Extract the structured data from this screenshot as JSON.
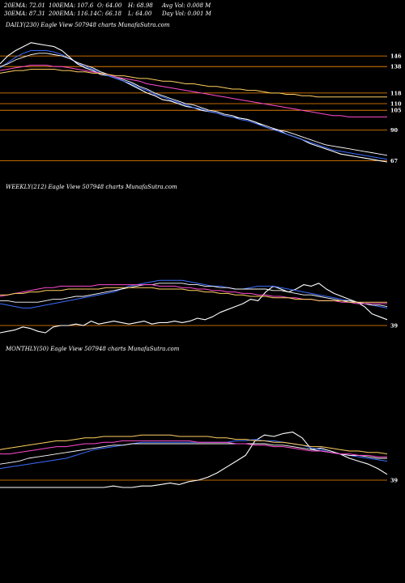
{
  "header": {
    "row1": [
      "20EMA: 72.01",
      "100EMA: 107.6",
      "O: 64.00",
      "H: 68.98",
      "Avg Vol: 0.008 M"
    ],
    "row2": [
      "30EMA: 87.31",
      "200EMA: 116.14",
      "C: 66.18",
      "L: 64.00",
      "Day Vol: 0.001 M"
    ]
  },
  "panels": {
    "daily": {
      "title": "DAILY(230) Eagle   View  507948  charts MunafaSutra.com"
    },
    "weekly": {
      "title": "WEEKLY(212) Eagle   View  507948  charts MunafaSutra.com"
    },
    "monthly": {
      "title": "MONTHLY(50) Eagle   View  507948  charts MunafaSutra.com"
    }
  },
  "colors": {
    "background": "#000000",
    "price": "#ffffff",
    "ema20": "#3b6cff",
    "ema30": "#ffffff",
    "ema100": "#ff4bd0",
    "ema200": "#ffd060",
    "level": "#ff8c00"
  },
  "chart_data": [
    {
      "type": "line",
      "panel": "daily",
      "series": [
        {
          "role": "price",
          "values": [
            140,
            146,
            150,
            153,
            156,
            155,
            154,
            153,
            150,
            145,
            140,
            137,
            135,
            132,
            131,
            129,
            127,
            124,
            121,
            118,
            116,
            113,
            112,
            110,
            108,
            107,
            105,
            104,
            103,
            101,
            100,
            99,
            98,
            96,
            93,
            91,
            90,
            87,
            85,
            83,
            80,
            78,
            76,
            74,
            72,
            71,
            70,
            69,
            68,
            67,
            66
          ]
        },
        {
          "role": "ema20",
          "values": [
            137,
            141,
            145,
            148,
            150,
            150,
            150,
            149,
            147,
            144,
            141,
            138,
            136,
            133,
            131,
            129,
            127,
            125,
            122,
            120,
            117,
            115,
            113,
            111,
            109,
            107,
            106,
            104,
            103,
            101,
            100,
            98,
            97,
            95,
            93,
            91,
            89,
            87,
            85,
            83,
            81,
            79,
            77,
            75,
            74,
            73,
            72,
            71,
            70,
            69,
            68
          ]
        },
        {
          "role": "ema30",
          "values": [
            138,
            140,
            143,
            145,
            147,
            148,
            148,
            147,
            146,
            144,
            141,
            139,
            137,
            134,
            132,
            130,
            128,
            126,
            123,
            121,
            118,
            116,
            114,
            112,
            110,
            109,
            107,
            105,
            104,
            102,
            101,
            99,
            98,
            96,
            94,
            92,
            90,
            89,
            87,
            85,
            83,
            81,
            79,
            78,
            77,
            76,
            75,
            74,
            73,
            72,
            71
          ]
        },
        {
          "role": "ema100",
          "values": [
            135,
            136,
            137,
            138,
            139,
            139,
            139,
            138,
            138,
            137,
            136,
            135,
            134,
            133,
            132,
            130,
            129,
            128,
            127,
            125,
            124,
            123,
            122,
            121,
            120,
            119,
            118,
            117,
            116,
            115,
            114,
            113,
            112,
            111,
            110,
            109,
            108,
            107,
            106,
            105,
            104,
            103,
            102,
            101,
            101,
            100,
            100,
            100,
            100,
            100,
            100
          ]
        },
        {
          "role": "ema200",
          "values": [
            133,
            134,
            135,
            135,
            136,
            136,
            136,
            136,
            135,
            135,
            134,
            134,
            133,
            133,
            132,
            131,
            131,
            130,
            129,
            129,
            128,
            127,
            127,
            126,
            125,
            125,
            124,
            123,
            123,
            122,
            121,
            121,
            120,
            120,
            119,
            118,
            118,
            117,
            117,
            116,
            116,
            115,
            115,
            115,
            115,
            115,
            115,
            115,
            115,
            115,
            115
          ]
        }
      ],
      "levels": [
        {
          "value": 146,
          "label": "146"
        },
        {
          "value": 138,
          "label": "138"
        },
        {
          "value": 118,
          "label": "118"
        },
        {
          "value": 110,
          "label": "110"
        },
        {
          "value": 105,
          "label": "105"
        },
        {
          "value": 90,
          "label": "90"
        },
        {
          "value": 67,
          "label": "67"
        }
      ],
      "ylim": [
        55,
        165
      ]
    },
    {
      "type": "line",
      "panel": "weekly",
      "series": [
        {
          "role": "price",
          "values": [
            30,
            31,
            32,
            34,
            33,
            31,
            30,
            34,
            35,
            35,
            36,
            35,
            38,
            36,
            37,
            38,
            37,
            36,
            37,
            38,
            36,
            37,
            37,
            38,
            37,
            38,
            40,
            39,
            41,
            44,
            46,
            48,
            50,
            53,
            52,
            58,
            62,
            60,
            58,
            60,
            63,
            62,
            64,
            60,
            57,
            55,
            53,
            51,
            48,
            43,
            41,
            39
          ]
        },
        {
          "role": "ema20",
          "values": [
            50,
            49,
            48,
            47,
            47,
            48,
            49,
            50,
            51,
            52,
            53,
            54,
            55,
            56,
            57,
            58,
            60,
            62,
            63,
            64,
            65,
            66,
            66,
            66,
            66,
            65,
            64,
            63,
            62,
            62,
            61,
            60,
            60,
            61,
            62,
            62,
            62,
            61,
            60,
            59,
            58,
            57,
            56,
            55,
            54,
            53,
            52,
            51,
            50,
            49,
            48,
            47
          ]
        },
        {
          "role": "ema30",
          "values": [
            52,
            52,
            51,
            51,
            51,
            51,
            52,
            53,
            53,
            54,
            55,
            55,
            56,
            57,
            58,
            59,
            60,
            61,
            62,
            63,
            63,
            64,
            64,
            64,
            64,
            63,
            63,
            62,
            62,
            61,
            61,
            60,
            60,
            60,
            60,
            60,
            59,
            59,
            58,
            57,
            56,
            56,
            55,
            54,
            53,
            52,
            52,
            51,
            50,
            49,
            49,
            48
          ]
        },
        {
          "role": "ema100",
          "values": [
            55,
            56,
            57,
            58,
            59,
            60,
            61,
            61,
            62,
            62,
            62,
            62,
            62,
            63,
            63,
            63,
            63,
            63,
            63,
            63,
            63,
            62,
            62,
            62,
            61,
            61,
            60,
            60,
            59,
            59,
            58,
            58,
            57,
            57,
            56,
            56,
            55,
            55,
            54,
            54,
            53,
            53,
            52,
            52,
            52,
            51,
            51,
            50,
            50,
            50,
            50,
            50
          ]
        },
        {
          "role": "ema200",
          "values": [
            56,
            56,
            57,
            57,
            58,
            58,
            59,
            59,
            59,
            60,
            60,
            60,
            60,
            60,
            61,
            61,
            61,
            61,
            61,
            61,
            61,
            60,
            60,
            60,
            60,
            59,
            59,
            58,
            58,
            57,
            57,
            56,
            56,
            55,
            55,
            55,
            54,
            54,
            54,
            53,
            53,
            53,
            52,
            52,
            52,
            52,
            51,
            51,
            51,
            51,
            51,
            51
          ]
        }
      ],
      "levels": [
        {
          "value": 35,
          "label": "39"
        }
      ],
      "ylim": [
        25,
        125
      ]
    },
    {
      "type": "line",
      "panel": "monthly",
      "series": [
        {
          "role": "price",
          "values": [
            20,
            20,
            20,
            20,
            20,
            20,
            20,
            20,
            20,
            20,
            20,
            20,
            21,
            20,
            20,
            21,
            21,
            22,
            23,
            22,
            24,
            25,
            27,
            30,
            34,
            38,
            42,
            52,
            56,
            55,
            57,
            58,
            54,
            46,
            47,
            45,
            43,
            40,
            38,
            36,
            33,
            29
          ]
        },
        {
          "role": "ema20",
          "values": [
            33,
            34,
            35,
            36,
            37,
            38,
            39,
            40,
            42,
            44,
            46,
            47,
            48,
            49,
            50,
            51,
            51,
            51,
            51,
            51,
            51,
            51,
            51,
            51,
            51,
            52,
            52,
            53,
            52,
            52,
            51,
            50,
            49,
            47,
            46,
            44,
            43,
            42,
            41,
            40,
            39,
            38
          ]
        },
        {
          "role": "ema30",
          "values": [
            36,
            37,
            38,
            40,
            41,
            42,
            43,
            44,
            45,
            46,
            47,
            48,
            49,
            49,
            50,
            50,
            50,
            50,
            50,
            50,
            50,
            50,
            50,
            50,
            50,
            50,
            50,
            50,
            50,
            49,
            49,
            48,
            47,
            46,
            45,
            44,
            43,
            42,
            42,
            41,
            40,
            40
          ]
        },
        {
          "role": "ema100",
          "values": [
            43,
            43,
            44,
            45,
            46,
            47,
            48,
            48,
            49,
            50,
            50,
            51,
            51,
            52,
            52,
            52,
            52,
            52,
            52,
            52,
            52,
            51,
            51,
            51,
            51,
            50,
            50,
            49,
            49,
            48,
            48,
            47,
            46,
            45,
            45,
            44,
            43,
            43,
            42,
            42,
            41,
            41
          ]
        },
        {
          "role": "ema200",
          "values": [
            46,
            47,
            48,
            49,
            50,
            51,
            52,
            52,
            53,
            54,
            54,
            55,
            55,
            55,
            55,
            56,
            56,
            56,
            56,
            55,
            55,
            55,
            55,
            54,
            54,
            53,
            53,
            52,
            52,
            51,
            51,
            50,
            49,
            48,
            48,
            47,
            46,
            45,
            45,
            44,
            44,
            43
          ]
        }
      ],
      "levels": [
        {
          "value": 25,
          "label": "39"
        }
      ],
      "ylim": [
        10,
        110
      ]
    }
  ]
}
